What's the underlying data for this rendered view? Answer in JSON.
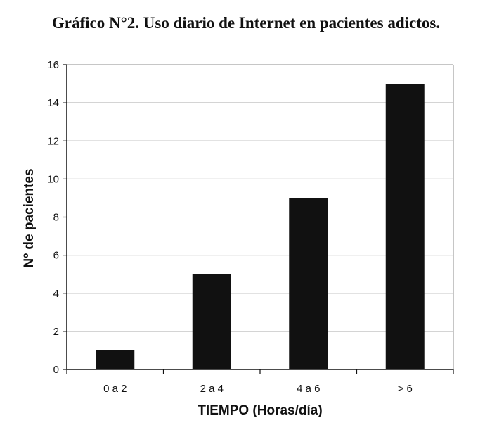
{
  "chart_data": {
    "type": "bar",
    "title": "Gráfico N°2. Uso diario de Internet en pacientes adictos.",
    "xlabel": "TIEMPO (Horas/día)",
    "ylabel": "Nº de pacientes",
    "categories": [
      "0 a 2",
      "2 a 4",
      "4 a 6",
      "> 6"
    ],
    "values": [
      1,
      5,
      9,
      15
    ],
    "ylim": [
      0,
      16
    ],
    "yticks": [
      0,
      2,
      4,
      6,
      8,
      10,
      12,
      14,
      16
    ],
    "grid": true,
    "legend": "none",
    "bar_color": "#111111",
    "grid_color": "#8c8c8c"
  }
}
